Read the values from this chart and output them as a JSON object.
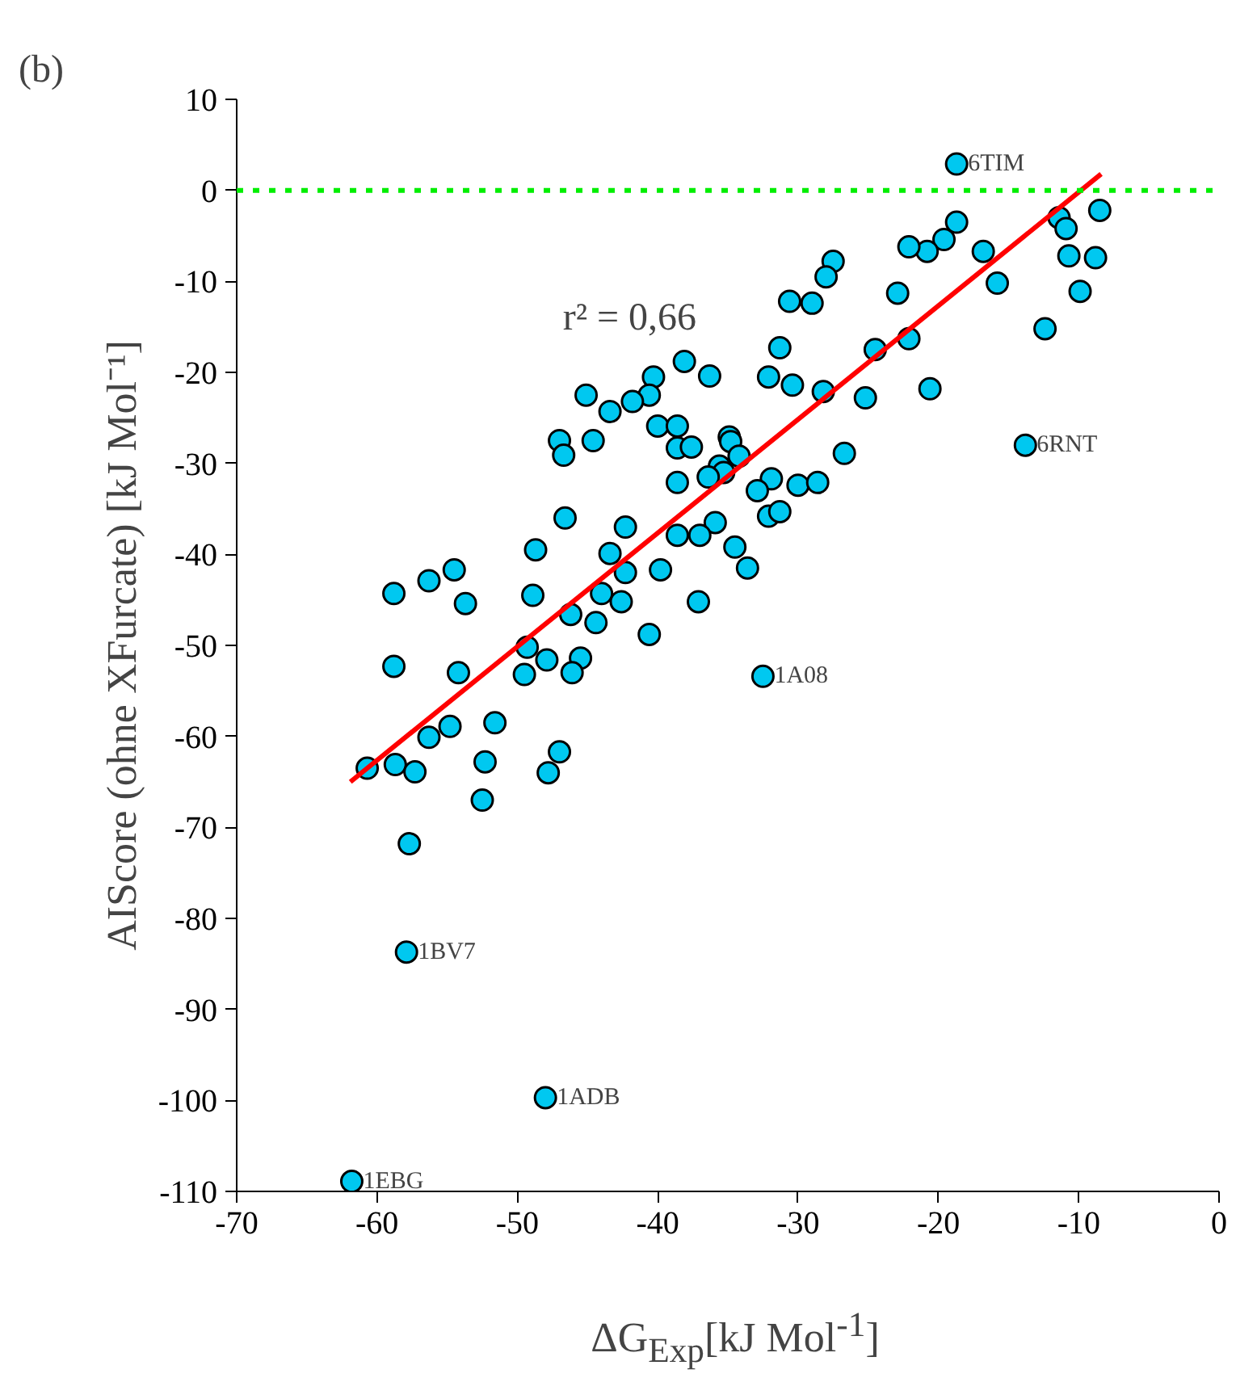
{
  "chart_data": {
    "type": "scatter",
    "title": "(b)",
    "xlabel": "ΔG$_{Exp}$[kJ Mol$^{-1}$]",
    "ylabel": "AIScore (ohne XFurcate) [kJ Mol⁻¹]",
    "xlim": [
      -70,
      0
    ],
    "xticks": [
      -70,
      -60,
      -50,
      -40,
      -30,
      -20,
      -10,
      0
    ],
    "ylim": [
      -110,
      10
    ],
    "yticks": [
      -110,
      -100,
      -90,
      -80,
      -70,
      -60,
      -50,
      -40,
      -30,
      -20,
      -10,
      0,
      10
    ],
    "grid": false,
    "series": [
      {
        "color": "#00c8f0",
        "marker": "circle",
        "x": [
          -18.7,
          -8.5,
          -11.4,
          -10.9,
          -10.7,
          -8.8,
          -9.9,
          -12.4,
          -13.8,
          -18.7,
          -19.6,
          -20.8,
          -22.1,
          -16.8,
          -15.8,
          -27.5,
          -28.0,
          -22.9,
          -30.6,
          -29.0,
          -22.1,
          -24.5,
          -31.3,
          -32.1,
          -30.4,
          -28.2,
          -25.2,
          -20.6,
          -34.9,
          -34.8,
          -34.2,
          -35.6,
          -35.3,
          -26.7,
          -31.9,
          -32.9,
          -30.0,
          -28.6,
          -32.1,
          -31.3,
          -35.9,
          -34.5,
          -33.6,
          -38.1,
          -36.3,
          -40.3,
          -40.6,
          -41.8,
          -45.1,
          -43.4,
          -47.0,
          -46.7,
          -44.6,
          -40.0,
          -38.6,
          -38.6,
          -37.6,
          -36.4,
          -38.6,
          -46.6,
          -42.3,
          -38.6,
          -37.0,
          -48.7,
          -43.4,
          -42.3,
          -39.8,
          -54.5,
          -56.3,
          -58.8,
          -53.7,
          -48.9,
          -44.0,
          -42.6,
          -37.1,
          -46.2,
          -44.4,
          -40.6,
          -49.3,
          -47.9,
          -45.5,
          -58.8,
          -54.2,
          -49.5,
          -46.1,
          -51.6,
          -54.8,
          -56.3,
          -60.7,
          -58.7,
          -57.3,
          -52.3,
          -47.0,
          -47.8,
          -52.5,
          -57.7,
          -57.9,
          -48.0,
          -61.8,
          -32.5
        ],
        "values": [
          2.9,
          -2.2,
          -3.0,
          -4.2,
          -7.2,
          -7.4,
          -11.1,
          -15.2,
          -28.0,
          -3.5,
          -5.4,
          -6.7,
          -6.2,
          -6.7,
          -10.2,
          -7.8,
          -9.5,
          -11.3,
          -12.2,
          -12.4,
          -16.3,
          -17.5,
          -17.3,
          -20.5,
          -21.4,
          -22.1,
          -22.8,
          -21.8,
          -27.1,
          -27.6,
          -29.2,
          -30.3,
          -31.0,
          -28.9,
          -31.7,
          -33.0,
          -32.4,
          -32.1,
          -35.8,
          -35.3,
          -36.5,
          -39.2,
          -41.5,
          -18.8,
          -20.4,
          -20.5,
          -22.5,
          -23.2,
          -22.5,
          -24.3,
          -27.5,
          -29.1,
          -27.5,
          -25.9,
          -25.9,
          -28.3,
          -28.2,
          -31.5,
          -32.1,
          -36.0,
          -37.0,
          -37.9,
          -37.9,
          -39.5,
          -39.9,
          -42.0,
          -41.7,
          -41.7,
          -42.9,
          -44.3,
          -45.4,
          -44.5,
          -44.3,
          -45.2,
          -45.2,
          -46.6,
          -47.5,
          -48.8,
          -50.2,
          -51.6,
          -51.4,
          -52.3,
          -53.0,
          -53.2,
          -53.0,
          -58.5,
          -58.9,
          -60.1,
          -63.5,
          -63.1,
          -63.9,
          -62.8,
          -61.7,
          -64.0,
          -67.0,
          -71.8,
          -83.7,
          -99.7,
          -108.9,
          -53.4
        ]
      },
      {
        "type": "line",
        "color": "#ff0000",
        "x": [
          -61.9,
          -8.4
        ],
        "values": [
          -65.0,
          1.8
        ]
      }
    ],
    "ref_lines": [
      {
        "axis": "y",
        "value": 0,
        "color": "#00ee00",
        "line_style": "dotted"
      }
    ],
    "annotations": [
      "r² = 0,66",
      {
        "text": "6TIM",
        "x": -18.7,
        "y": 2.9
      },
      {
        "text": "6RNT",
        "x": -13.8,
        "y": -28.0
      },
      {
        "text": "1A08",
        "x": -32.5,
        "y": -53.4
      },
      {
        "text": "1BV7",
        "x": -57.9,
        "y": -83.7
      },
      {
        "text": "1ADB",
        "x": -48.0,
        "y": -99.7
      },
      {
        "text": "1EBG",
        "x": -61.8,
        "y": -108.9
      }
    ]
  }
}
